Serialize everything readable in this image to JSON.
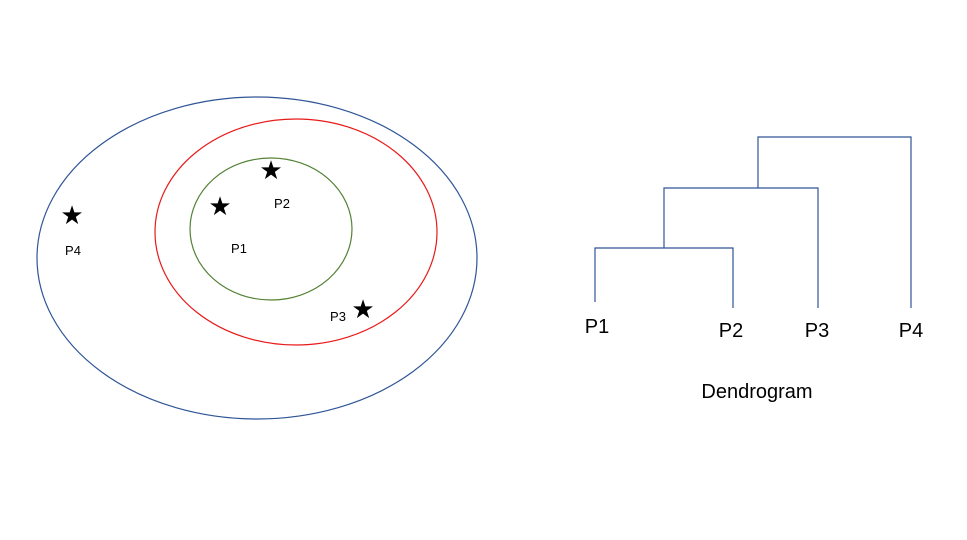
{
  "colors": {
    "outer_cluster": "#2f5597",
    "middle_cluster": "#e81919",
    "inner_cluster": "#548235",
    "dendrogram": "#2f5597",
    "text": "#000000"
  },
  "cluster_view": {
    "points": [
      {
        "label": "P1",
        "icon": "star-icon"
      },
      {
        "label": "P2",
        "icon": "star-icon"
      },
      {
        "label": "P3",
        "icon": "star-icon"
      },
      {
        "label": "P4",
        "icon": "star-icon"
      }
    ],
    "star_glyph": "★"
  },
  "dendrogram": {
    "leaves": [
      "P1",
      "P2",
      "P3",
      "P4"
    ],
    "caption": "Dendrogram"
  }
}
